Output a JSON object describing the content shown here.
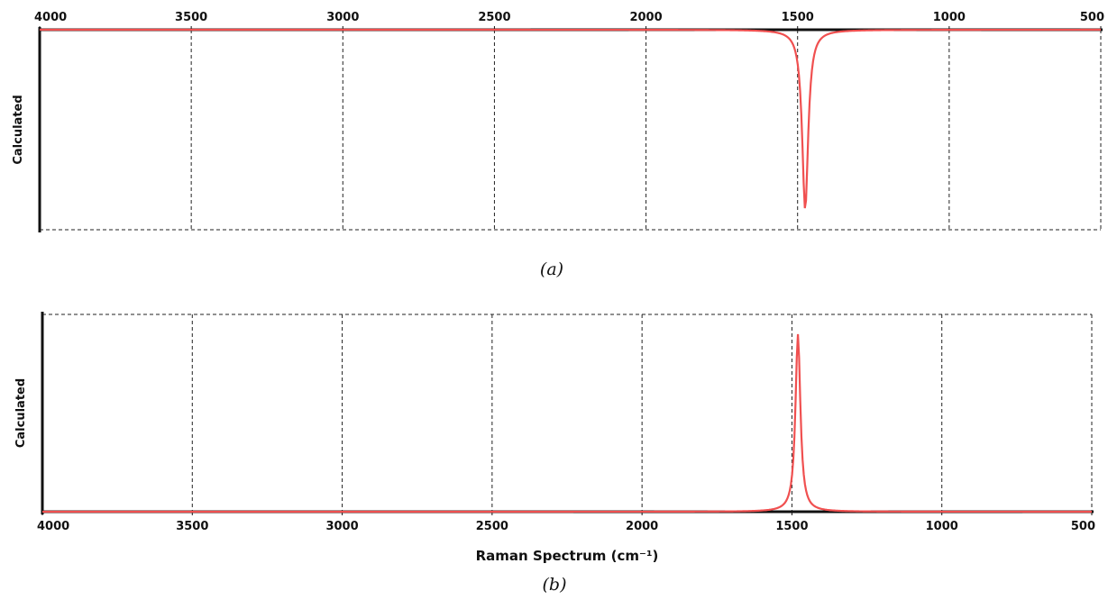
{
  "chart_data": [
    {
      "type": "line",
      "panel": "a",
      "caption": "(a)",
      "ylabel": "Calculated",
      "xlabel": "",
      "x_ticks": [
        4000,
        3500,
        3000,
        2500,
        2000,
        1500,
        1000,
        500
      ],
      "x_tick_position": "top",
      "xlim": [
        4000,
        500
      ],
      "x_reversed": true,
      "grid": true,
      "series": [
        {
          "color": "#f05050",
          "peak_x": 1475,
          "peak_direction": "down",
          "baseline": 1.0,
          "peak_value": 0.1,
          "hwhm": 12
        }
      ]
    },
    {
      "type": "line",
      "panel": "b",
      "caption": "(b)",
      "ylabel": "Calculated",
      "xlabel": "Raman Spectrum (cm⁻¹)",
      "x_ticks": [
        4000,
        3500,
        3000,
        2500,
        2000,
        1500,
        1000,
        500
      ],
      "x_tick_position": "bottom",
      "xlim": [
        4000,
        500
      ],
      "x_reversed": true,
      "grid": true,
      "series": [
        {
          "color": "#f05050",
          "peak_x": 1480,
          "peak_direction": "up",
          "baseline": 0.0,
          "peak_value": 0.9,
          "hwhm": 10
        }
      ]
    }
  ]
}
